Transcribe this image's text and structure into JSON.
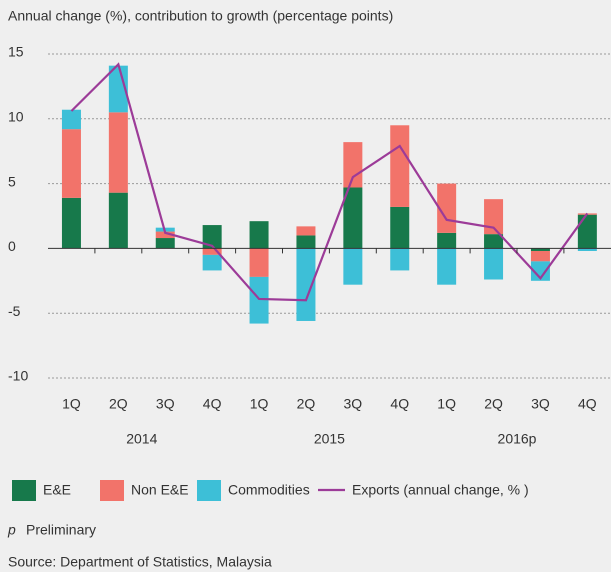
{
  "chart_data": {
    "type": "stacked_bar_line",
    "title": "Annual change (%), contribution to growth (percentage points)",
    "categories": [
      "1Q",
      "2Q",
      "3Q",
      "4Q",
      "1Q",
      "2Q",
      "3Q",
      "4Q",
      "1Q",
      "2Q",
      "3Q",
      "4Q"
    ],
    "year_groups": [
      "2014",
      "2015",
      "2016p"
    ],
    "series": [
      {
        "name": "E&E",
        "color": "#17794b",
        "kind": "bar",
        "values": [
          3.9,
          4.3,
          0.8,
          1.8,
          2.1,
          1.0,
          4.7,
          3.2,
          1.2,
          1.1,
          -0.2,
          2.6
        ]
      },
      {
        "name": "Non E&E",
        "color": "#f2736a",
        "kind": "bar",
        "values": [
          5.3,
          6.2,
          0.5,
          -0.5,
          -2.2,
          0.7,
          3.5,
          6.3,
          3.8,
          2.7,
          -0.8,
          0.1
        ]
      },
      {
        "name": "Commodities",
        "color": "#3dbfd7",
        "kind": "bar",
        "values": [
          1.5,
          3.6,
          0.3,
          -1.2,
          -3.6,
          -5.6,
          -2.8,
          -1.7,
          -2.8,
          -2.4,
          -1.5,
          -0.2
        ]
      },
      {
        "name": "Exports (annual change, % )",
        "color": "#9c3b98",
        "kind": "line",
        "values": [
          10.6,
          14.2,
          1.2,
          0.2,
          -3.9,
          -4.0,
          5.5,
          7.9,
          2.2,
          1.6,
          -2.3,
          2.7
        ]
      }
    ],
    "ylim": [
      -10,
      15
    ],
    "yticks": [
      -10,
      -5,
      0,
      5,
      10,
      15
    ],
    "grid": true,
    "note_symbol": "p",
    "note": "Preliminary",
    "source": "Source: Department of Statistics, Malaysia"
  }
}
